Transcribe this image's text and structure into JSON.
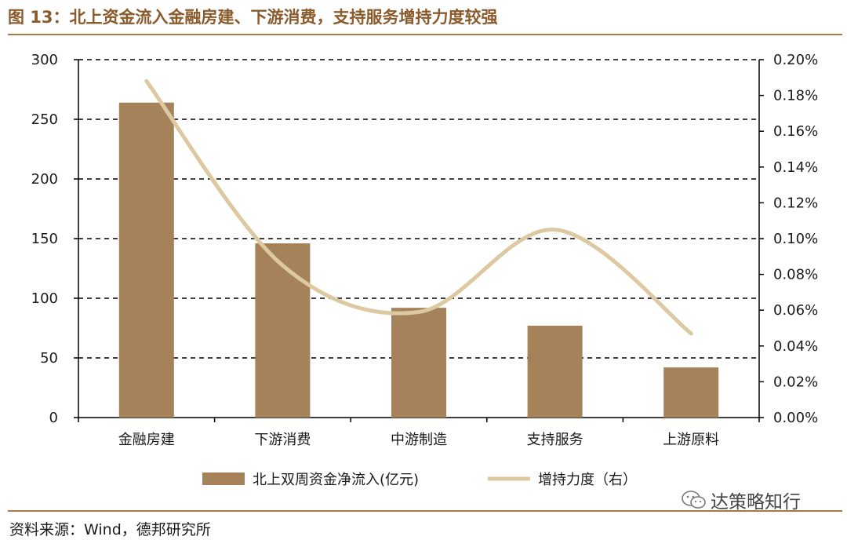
{
  "header": {
    "title": "图 13：北上资金流入金融房建、下游消费，支持服务增持力度较强"
  },
  "footer": {
    "source": "资料来源：Wind，德邦研究所",
    "watermark": "达策略知行"
  },
  "colors": {
    "bar": "#a6825a",
    "line": "#dcc9a1",
    "accent": "#8b5a2b",
    "grid": "#000000"
  },
  "chart_data": {
    "type": "bar",
    "categories": [
      "金融房建",
      "下游消费",
      "中游制造",
      "支持服务",
      "上游原料"
    ],
    "series": [
      {
        "name": "北上双周资金净流入(亿元)",
        "type": "bar",
        "axis": "left",
        "values": [
          264,
          146,
          92,
          77,
          42
        ]
      },
      {
        "name": "增持力度（右）",
        "type": "line",
        "axis": "right",
        "smooth": true,
        "values": [
          0.188,
          0.085,
          0.059,
          0.105,
          0.047
        ]
      }
    ],
    "y_left": {
      "ylim": [
        0,
        300
      ],
      "ticks": [
        0,
        50,
        100,
        150,
        200,
        250,
        300
      ],
      "tick_labels": [
        "0",
        "50",
        "100",
        "150",
        "200",
        "250",
        "300"
      ]
    },
    "y_right": {
      "ylim": [
        0,
        0.2
      ],
      "ticks": [
        0,
        0.02,
        0.04,
        0.06,
        0.08,
        0.1,
        0.12,
        0.14,
        0.16,
        0.18,
        0.2
      ],
      "tick_labels": [
        "0.00%",
        "0.02%",
        "0.04%",
        "0.06%",
        "0.08%",
        "0.10%",
        "0.12%",
        "0.14%",
        "0.16%",
        "0.18%",
        "0.20%"
      ]
    },
    "grid": "dashed horizontal",
    "legend": "bottom"
  }
}
